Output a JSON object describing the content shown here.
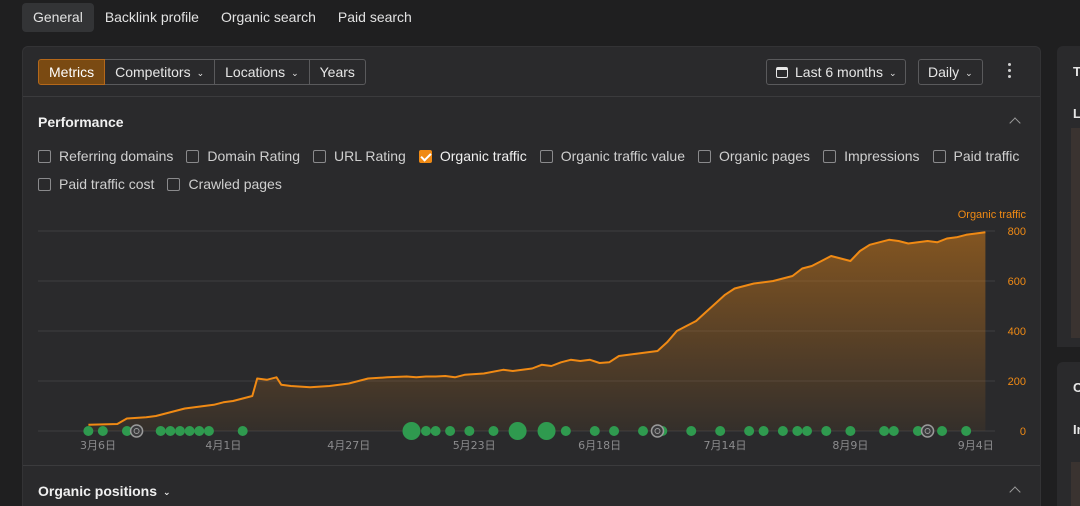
{
  "top_tabs": [
    "General",
    "Backlink profile",
    "Organic search",
    "Paid search"
  ],
  "toolbar": {
    "segments": [
      {
        "label": "Metrics",
        "active": true,
        "dropdown": false
      },
      {
        "label": "Competitors",
        "active": false,
        "dropdown": true
      },
      {
        "label": "Locations",
        "active": false,
        "dropdown": true
      },
      {
        "label": "Years",
        "active": false,
        "dropdown": false
      }
    ],
    "date_range": "Last 6 months",
    "granularity": "Daily"
  },
  "performance": {
    "title": "Performance",
    "checkboxes": [
      {
        "label": "Referring domains",
        "checked": false
      },
      {
        "label": "Domain Rating",
        "checked": false
      },
      {
        "label": "URL Rating",
        "checked": false
      },
      {
        "label": "Organic traffic",
        "checked": true
      },
      {
        "label": "Organic traffic value",
        "checked": false
      },
      {
        "label": "Organic pages",
        "checked": false
      },
      {
        "label": "Impressions",
        "checked": false
      },
      {
        "label": "Paid traffic",
        "checked": false
      },
      {
        "label": "Paid traffic cost",
        "checked": false
      },
      {
        "label": "Crawled pages",
        "checked": false
      }
    ]
  },
  "organic_positions": {
    "title": "Organic positions"
  },
  "right_panel": {
    "letters": [
      "T",
      "L",
      "C",
      "In"
    ]
  },
  "colors": {
    "accent": "#f08a14",
    "event_dot": "#2f9a4f"
  },
  "chart_data": {
    "type": "area",
    "series": [
      {
        "name": "Organic traffic",
        "color": "#f08a14"
      }
    ],
    "axis_title": "Organic traffic",
    "ylim": [
      0,
      800
    ],
    "yticks": [
      0,
      200,
      400,
      600,
      800
    ],
    "xticks": [
      "3月6日",
      "4月1日",
      "4月27日",
      "5月23日",
      "6月18日",
      "7月14日",
      "8月9日",
      "9月4日"
    ],
    "xtick_day": [
      0,
      26,
      52,
      78,
      104,
      130,
      156,
      182
    ],
    "x_day": [
      -2,
      4,
      6,
      10,
      12,
      16,
      18,
      20,
      22,
      24,
      26,
      28,
      30,
      32,
      33,
      35,
      37,
      38,
      40,
      44,
      48,
      52,
      56,
      60,
      64,
      66,
      68,
      70,
      72,
      74,
      76,
      80,
      84,
      86,
      88,
      90,
      92,
      94,
      96,
      98,
      100,
      102,
      104,
      106,
      108,
      110,
      112,
      114,
      116,
      118,
      120,
      122,
      124,
      126,
      128,
      130,
      132,
      134,
      136,
      140,
      144,
      146,
      148,
      150,
      152,
      154,
      156,
      158,
      160,
      162,
      164,
      166,
      168,
      170,
      172,
      174,
      176,
      178,
      180,
      182,
      184
    ],
    "y": [
      25,
      28,
      50,
      55,
      60,
      80,
      90,
      95,
      100,
      105,
      115,
      120,
      130,
      140,
      210,
      205,
      215,
      185,
      180,
      175,
      180,
      190,
      210,
      215,
      218,
      215,
      218,
      218,
      220,
      215,
      225,
      230,
      245,
      240,
      245,
      250,
      265,
      260,
      275,
      285,
      280,
      285,
      272,
      275,
      300,
      305,
      310,
      315,
      320,
      355,
      400,
      420,
      440,
      475,
      510,
      545,
      570,
      580,
      590,
      600,
      620,
      650,
      660,
      680,
      700,
      690,
      680,
      720,
      745,
      755,
      765,
      760,
      750,
      755,
      760,
      755,
      770,
      775,
      785,
      790,
      795
    ],
    "events": [
      {
        "day": -2,
        "size": 1
      },
      {
        "day": 1,
        "size": 1
      },
      {
        "day": 6,
        "size": 1
      },
      {
        "day": 8,
        "size": 1
      },
      {
        "day": 13,
        "size": 1
      },
      {
        "day": 15,
        "size": 1
      },
      {
        "day": 17,
        "size": 1
      },
      {
        "day": 19,
        "size": 1
      },
      {
        "day": 21,
        "size": 1
      },
      {
        "day": 23,
        "size": 1
      },
      {
        "day": 30,
        "size": 1
      },
      {
        "day": 65,
        "size": 2
      },
      {
        "day": 68,
        "size": 1
      },
      {
        "day": 70,
        "size": 1
      },
      {
        "day": 73,
        "size": 1
      },
      {
        "day": 77,
        "size": 1
      },
      {
        "day": 82,
        "size": 1
      },
      {
        "day": 87,
        "size": 2
      },
      {
        "day": 93,
        "size": 2
      },
      {
        "day": 97,
        "size": 1
      },
      {
        "day": 103,
        "size": 1
      },
      {
        "day": 107,
        "size": 1
      },
      {
        "day": 113,
        "size": 1
      },
      {
        "day": 117,
        "size": 1
      },
      {
        "day": 123,
        "size": 1
      },
      {
        "day": 129,
        "size": 1
      },
      {
        "day": 135,
        "size": 1
      },
      {
        "day": 138,
        "size": 1
      },
      {
        "day": 142,
        "size": 1
      },
      {
        "day": 145,
        "size": 1
      },
      {
        "day": 147,
        "size": 1
      },
      {
        "day": 151,
        "size": 1
      },
      {
        "day": 156,
        "size": 1
      },
      {
        "day": 163,
        "size": 1
      },
      {
        "day": 165,
        "size": 1
      },
      {
        "day": 170,
        "size": 1
      },
      {
        "day": 175,
        "size": 1
      },
      {
        "day": 180,
        "size": 1
      }
    ],
    "annotations": [
      {
        "day": 8
      },
      {
        "day": 116
      },
      {
        "day": 172
      }
    ],
    "grid": true
  }
}
